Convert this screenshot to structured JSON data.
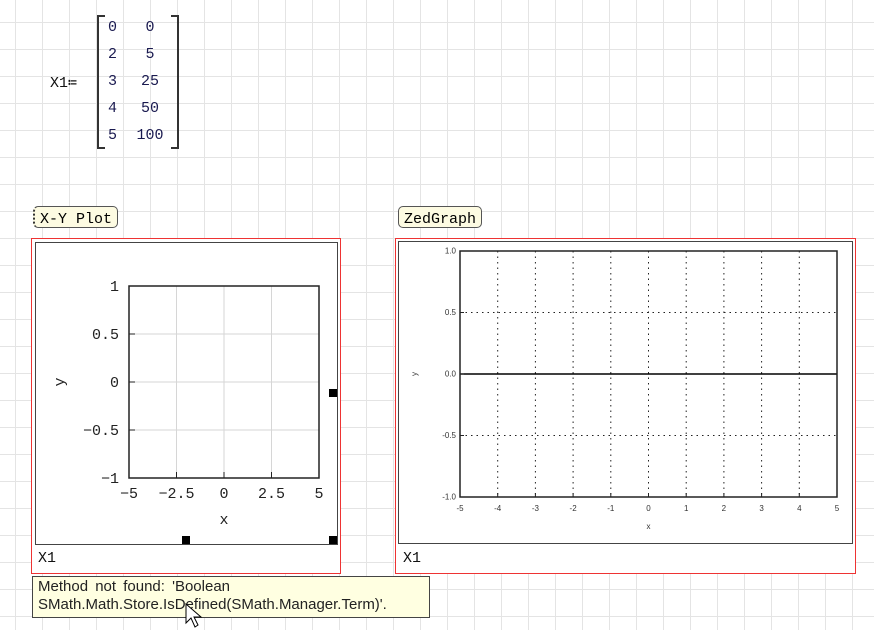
{
  "matrix": {
    "name": "X1",
    "assign": "≔",
    "rows": [
      [
        "0",
        "0"
      ],
      [
        "2",
        "5"
      ],
      [
        "3",
        "25"
      ],
      [
        "4",
        "50"
      ],
      [
        "5",
        "100"
      ]
    ]
  },
  "plots": [
    {
      "label": "X-Y Plot",
      "legend": "X1"
    },
    {
      "label": "ZedGraph",
      "legend": "X1"
    }
  ],
  "tooltip": {
    "line1": "Method not found: 'Boolean",
    "line2": "SMath.Math.Store.IsDefined(SMath.Manager.Term)'."
  },
  "colors": {
    "selection_frame": "#ee3333",
    "label_bg": "#fdfbe2",
    "tooltip_bg": "#ffffe1"
  },
  "chart_data": [
    {
      "type": "line",
      "xlabel": "x",
      "ylabel": "y",
      "xlim": [
        -5,
        5
      ],
      "ylim": [
        -1,
        1
      ],
      "xticks": [
        "−5",
        "−2.5",
        "0",
        "2.5",
        "5"
      ],
      "yticks": [
        "1",
        "0.5",
        "0",
        "−0.5",
        "−1"
      ],
      "grid": true,
      "series": []
    },
    {
      "type": "line",
      "xlabel": "x",
      "ylabel": "y",
      "xlim": [
        -5,
        5
      ],
      "ylim": [
        -1,
        1
      ],
      "xticks": [
        "-5",
        "-4",
        "-3",
        "-2",
        "-1",
        "0",
        "1",
        "2",
        "3",
        "4",
        "5"
      ],
      "yticks": [
        "1.0",
        "0.5",
        "0.0",
        "-0.5",
        "-1.0"
      ],
      "grid": "dotted",
      "series": []
    }
  ]
}
